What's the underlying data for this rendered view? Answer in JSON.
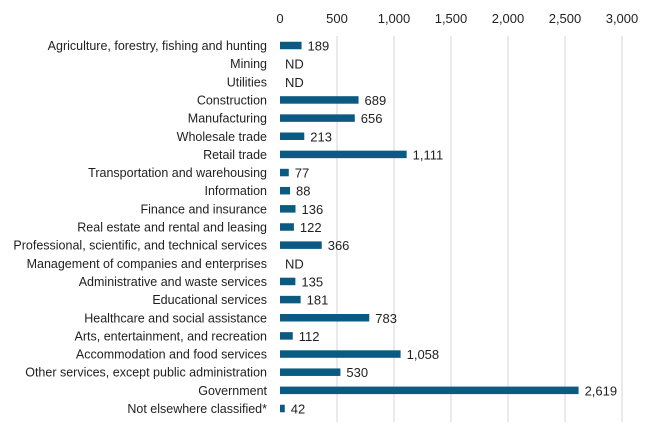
{
  "chart_data": {
    "type": "bar",
    "orientation": "horizontal",
    "title": "",
    "xlabel": "",
    "ylabel": "",
    "xlim": [
      0,
      3000
    ],
    "x_ticks": [
      0,
      500,
      1000,
      1500,
      2000,
      2500,
      3000
    ],
    "x_tick_labels": [
      "0",
      "500",
      "1,000",
      "1,500",
      "2,000",
      "2,500",
      "3,000"
    ],
    "axis_position": "top",
    "grid": true,
    "legend": "none",
    "bar_color": "#0b5a82",
    "categories": [
      "Agriculture, forestry, fishing and hunting",
      "Mining",
      "Utilities",
      "Construction",
      "Manufacturing",
      "Wholesale trade",
      "Retail trade",
      "Transportation and warehousing",
      "Information",
      "Finance and insurance",
      "Real estate and rental and leasing",
      "Professional, scientific, and technical services",
      "Management of companies and enterprises",
      "Administrative and waste services",
      "Educational services",
      "Healthcare and social assistance",
      "Arts, entertainment, and recreation",
      "Accommodation and food services",
      "Other services, except public administration",
      "Government",
      "Not elsewhere classified*"
    ],
    "values": [
      189,
      null,
      null,
      689,
      656,
      213,
      1111,
      77,
      88,
      136,
      122,
      366,
      null,
      135,
      181,
      783,
      112,
      1058,
      530,
      2619,
      42
    ],
    "value_labels": [
      "189",
      "ND",
      "ND",
      "689",
      "656",
      "213",
      "1,111",
      "77",
      "88",
      "136",
      "122",
      "366",
      "ND",
      "135",
      "181",
      "783",
      "112",
      "1,058",
      "530",
      "2,619",
      "42"
    ]
  }
}
